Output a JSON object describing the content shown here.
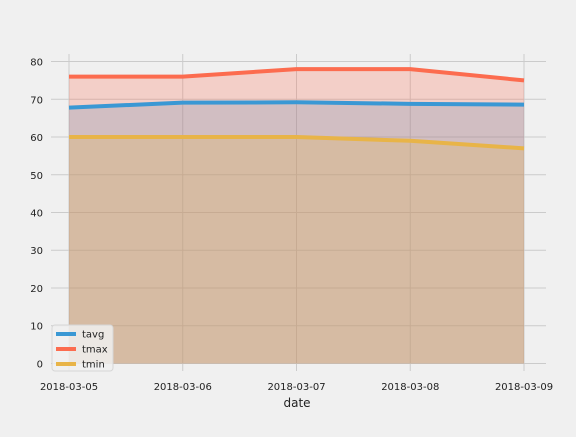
{
  "chart_data": {
    "type": "area",
    "title": "",
    "xlabel": "date",
    "ylabel": "",
    "x": [
      "2018-03-05",
      "2018-03-06",
      "2018-03-07",
      "2018-03-08",
      "2018-03-09"
    ],
    "ylim": [
      -2,
      82
    ],
    "yticks": [
      0,
      10,
      20,
      30,
      40,
      50,
      60,
      70,
      80
    ],
    "grid": true,
    "stacked": false,
    "legend_position": "lower-left",
    "series": [
      {
        "name": "tavg",
        "color": "#3a98d4",
        "values": [
          67.8,
          69.1,
          69.2,
          68.8,
          68.6
        ]
      },
      {
        "name": "tmax",
        "color": "#fc6c4f",
        "values": [
          76.0,
          76.0,
          78.0,
          78.0,
          75.0
        ]
      },
      {
        "name": "tmin",
        "color": "#e8b448",
        "values": [
          60.0,
          60.0,
          60.0,
          59.0,
          57.0
        ]
      }
    ]
  }
}
